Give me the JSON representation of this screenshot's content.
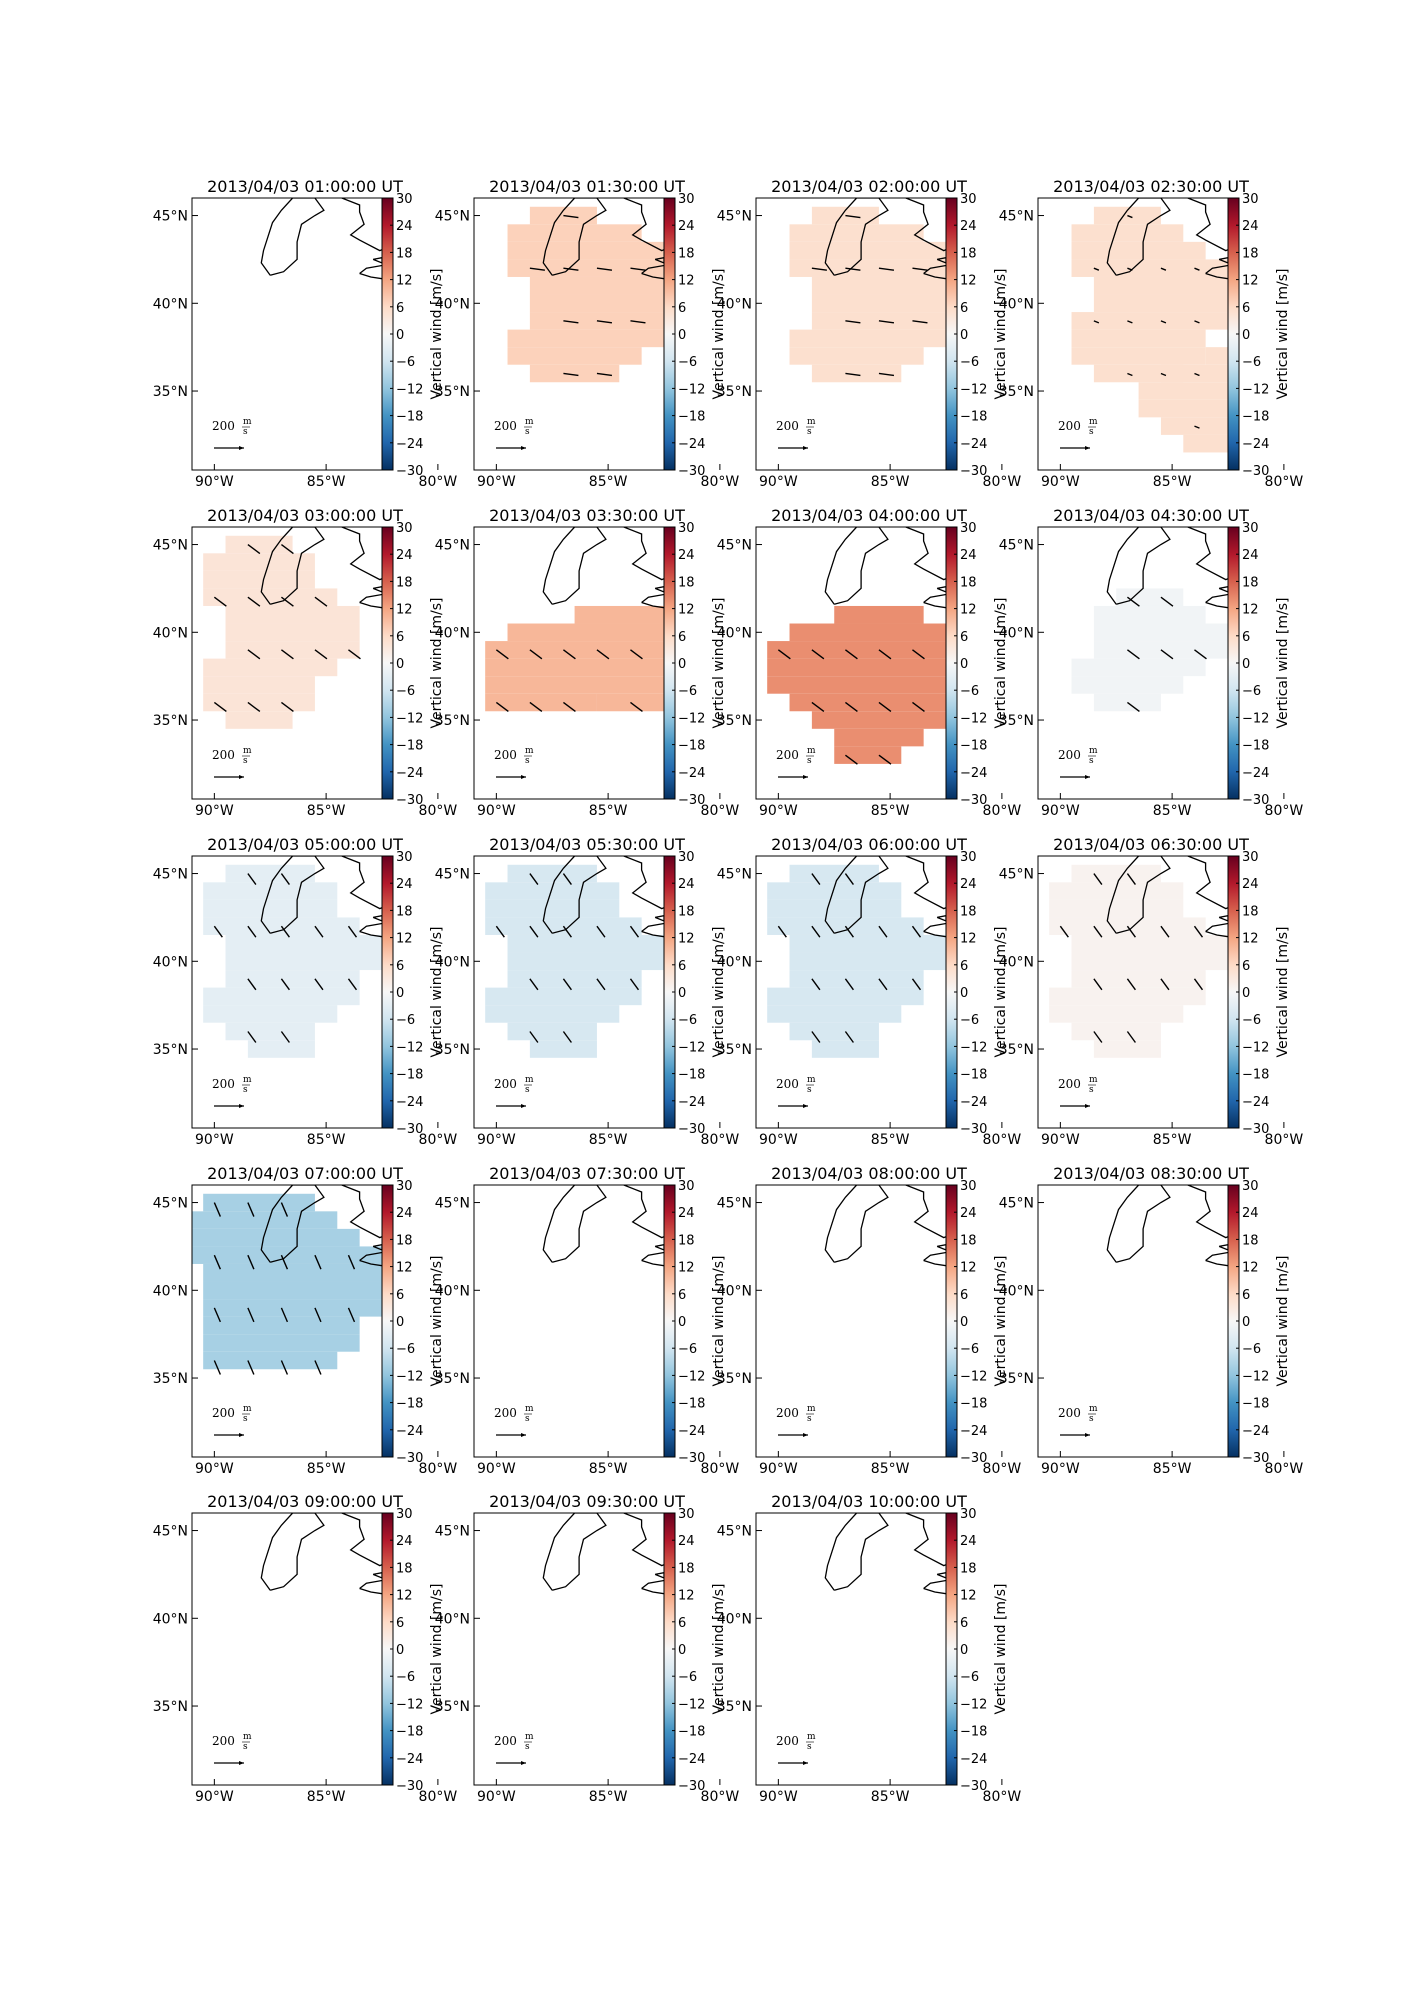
{
  "chart_data": {
    "type": "heatmap",
    "colorbar": {
      "label": "Vertical wind [m/s]",
      "ticks": [
        "30",
        "24",
        "18",
        "12",
        "6",
        "0",
        "−6",
        "−12",
        "−18",
        "−24",
        "−30"
      ],
      "range": [
        -30,
        30
      ],
      "colormap": "RdBu_r"
    },
    "axes": {
      "y_ticks": [
        "45°N",
        "40°N",
        "35°N"
      ],
      "x_ticks": [
        "90°W",
        "85°W",
        "80°W"
      ],
      "lat_range": [
        30.5,
        46
      ],
      "lon_range": [
        -91,
        -82.5
      ]
    },
    "reference_arrow": {
      "label": "200",
      "unit_num": "m",
      "unit_den": "s",
      "value": 200
    },
    "panels": [
      {
        "title": "2013/04/03 01:00:00 UT",
        "vertical_wind": null,
        "region": null,
        "arrows": null
      },
      {
        "title": "2013/04/03 01:30:00 UT",
        "vertical_wind": 7,
        "region": "A",
        "arrows": "east"
      },
      {
        "title": "2013/04/03 02:00:00 UT",
        "vertical_wind": 5,
        "region": "A",
        "arrows": "east"
      },
      {
        "title": "2013/04/03 02:30:00 UT",
        "vertical_wind": 5,
        "region": "B",
        "arrows": "short"
      },
      {
        "title": "2013/04/03 03:00:00 UT",
        "vertical_wind": 4,
        "region": "C",
        "arrows": "southeast"
      },
      {
        "title": "2013/04/03 03:30:00 UT",
        "vertical_wind": 10,
        "region": "D",
        "arrows": "southeast"
      },
      {
        "title": "2013/04/03 04:00:00 UT",
        "vertical_wind": 14,
        "region": "E",
        "arrows": "southeast"
      },
      {
        "title": "2013/04/03 04:30:00 UT",
        "vertical_wind": -1,
        "region": "F",
        "arrows": "southeast"
      },
      {
        "title": "2013/04/03 05:00:00 UT",
        "vertical_wind": -3,
        "region": "G",
        "arrows": "south-southeast"
      },
      {
        "title": "2013/04/03 05:30:00 UT",
        "vertical_wind": -5,
        "region": "G",
        "arrows": "south-southeast"
      },
      {
        "title": "2013/04/03 06:00:00 UT",
        "vertical_wind": -5,
        "region": "G",
        "arrows": "south-southeast"
      },
      {
        "title": "2013/04/03 06:30:00 UT",
        "vertical_wind": 1,
        "region": "G",
        "arrows": "south-southeast"
      },
      {
        "title": "2013/04/03 07:00:00 UT",
        "vertical_wind": -10,
        "region": "H",
        "arrows": "south"
      },
      {
        "title": "2013/04/03 07:30:00 UT",
        "vertical_wind": null,
        "region": null,
        "arrows": null
      },
      {
        "title": "2013/04/03 08:00:00 UT",
        "vertical_wind": null,
        "region": null,
        "arrows": null
      },
      {
        "title": "2013/04/03 08:30:00 UT",
        "vertical_wind": null,
        "region": null,
        "arrows": null
      },
      {
        "title": "2013/04/03 09:00:00 UT",
        "vertical_wind": null,
        "region": null,
        "arrows": null
      },
      {
        "title": "2013/04/03 09:30:00 UT",
        "vertical_wind": null,
        "region": null,
        "arrows": null
      },
      {
        "title": "2013/04/03 10:00:00 UT",
        "vertical_wind": null,
        "region": null,
        "arrows": null
      }
    ]
  }
}
